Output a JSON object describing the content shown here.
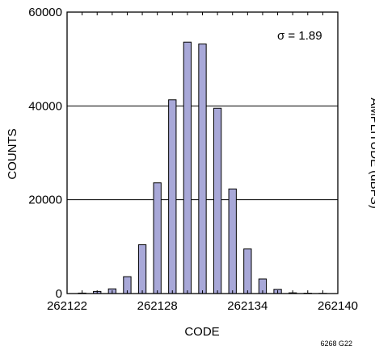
{
  "chart_data": {
    "type": "bar",
    "title": "",
    "xlabel": "CODE",
    "ylabel": "COUNTS",
    "right_axis_label": "AMPLITUDE (dBFS)",
    "annotation": "σ = 1.89",
    "figure_code": "6268 G22",
    "xlim": [
      262122,
      262140
    ],
    "ylim": [
      0,
      60000
    ],
    "x_ticks": [
      "262122",
      "262128",
      "262134",
      "262140"
    ],
    "y_ticks": [
      "0",
      "20000",
      "40000",
      "60000"
    ],
    "grid": "horizontal",
    "bar_color": "#a8a8d8",
    "x": [
      262123,
      262124,
      262125,
      262126,
      262127,
      262128,
      262129,
      262130,
      262131,
      262132,
      262133,
      262134,
      262135,
      262136,
      262137,
      262138,
      262139
    ],
    "values": [
      100,
      450,
      1000,
      3600,
      10400,
      23600,
      41300,
      53600,
      53200,
      39500,
      22300,
      9500,
      3100,
      900,
      150,
      80,
      40
    ]
  }
}
